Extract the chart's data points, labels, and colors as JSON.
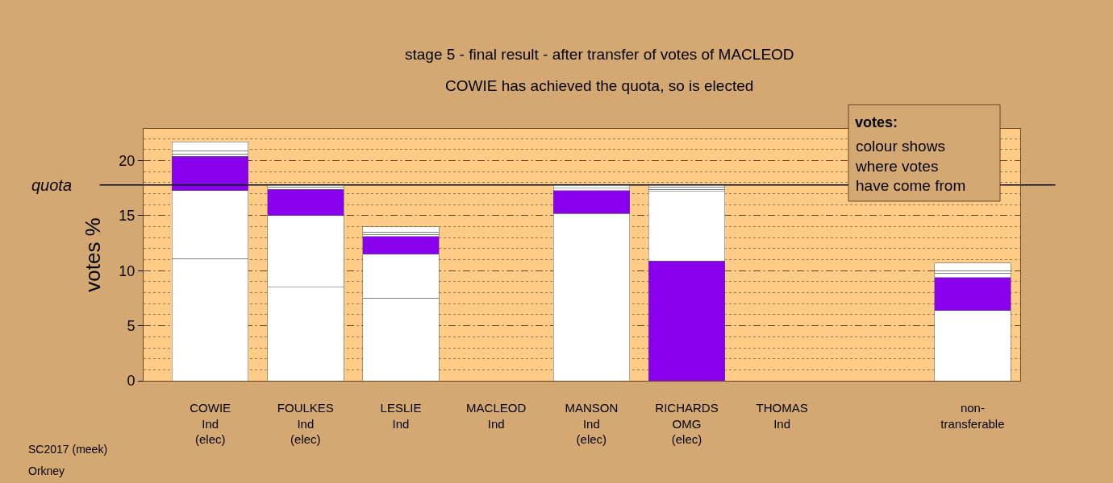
{
  "chart_data": {
    "type": "bar",
    "stacked": true,
    "title": "stage 5 - final result - after transfer of votes of MACLEOD",
    "subtitle": "COWIE has achieved the quota, so is elected",
    "ylabel": "votes %",
    "categories": [
      "COWIE\nInd\n(elec)",
      "FOULKES\nInd\n(elec)",
      "LESLIE\nInd",
      "MACLEOD\nInd",
      "MANSON\nInd\n(elec)",
      "RICHARDS\nOMG\n(elec)",
      "THOMAS\nInd",
      null,
      "non-\ntransferable"
    ],
    "series": [
      {
        "colors": [
          "#ffffff",
          "#ffffff",
          "#ffffff",
          "#ffffff",
          "#ffffff",
          "#8800ee",
          "#ffffff",
          "#ffffff",
          "#ffffff"
        ],
        "values": [
          11.1,
          8.5,
          7.5,
          null,
          15.2,
          10.9,
          null,
          null,
          6.4
        ]
      },
      {
        "colors": [
          "#ffffff",
          "#ffffff",
          "#ffffff",
          "#ffffff",
          "#ffffff",
          "#ffffff",
          "#ffffff",
          "#ffffff",
          "#ffffff"
        ],
        "values": [
          6.2,
          6.5,
          4.0,
          null,
          null,
          6.3,
          null,
          null,
          null
        ]
      },
      {
        "colors": [
          "#8800ee",
          "#8800ee",
          "#8800ee",
          "#8800ee",
          "#8800ee",
          "#ffffff",
          "#8800ee",
          "#8800ee",
          "#8800ee"
        ],
        "values": [
          3.1,
          2.4,
          1.6,
          null,
          2.1,
          0.2,
          null,
          null,
          3.0
        ]
      },
      {
        "colors": [
          "#ffffff",
          "#ffffff",
          "#ffffff",
          "#ffffff",
          "#ffffff",
          "#ffffff",
          "#ffffff",
          "#ffffff",
          "#ffffff"
        ],
        "values": [
          0.2,
          0.2,
          0.2,
          null,
          0.2,
          0.2,
          null,
          null,
          0.4
        ]
      },
      {
        "colors": [
          "#ffffff",
          "#ffffff",
          "#ffffff",
          "#ffffff",
          "#ffffff",
          "#ffffff",
          "#ffffff",
          "#ffffff",
          "#ffffff"
        ],
        "values": [
          0.3,
          null,
          0.2,
          null,
          null,
          null,
          null,
          null,
          0.2
        ]
      },
      {
        "colors": [
          "#ffffff",
          "#ffffff",
          "#ffffff",
          "#ffffff",
          "#ffffff",
          "#ffffff",
          "#ffffff",
          "#ffffff",
          "#ffffff"
        ],
        "values": [
          0.8,
          0.2,
          0.5,
          null,
          0.3,
          0.2,
          null,
          null,
          0.7
        ]
      }
    ],
    "ylim": [
      0,
      22.9
    ],
    "yticks": [
      0,
      5,
      10,
      15,
      20
    ],
    "grid": "y",
    "ref_lines": [
      {
        "axis": "y",
        "value": 17.8,
        "label": "quota",
        "color": "#000000",
        "line_style": "solid"
      }
    ],
    "annotations": [
      "votes:",
      "colour shows\nwhere votes\nhave come from",
      "SC2017 (meek)",
      "Orkney"
    ]
  }
}
